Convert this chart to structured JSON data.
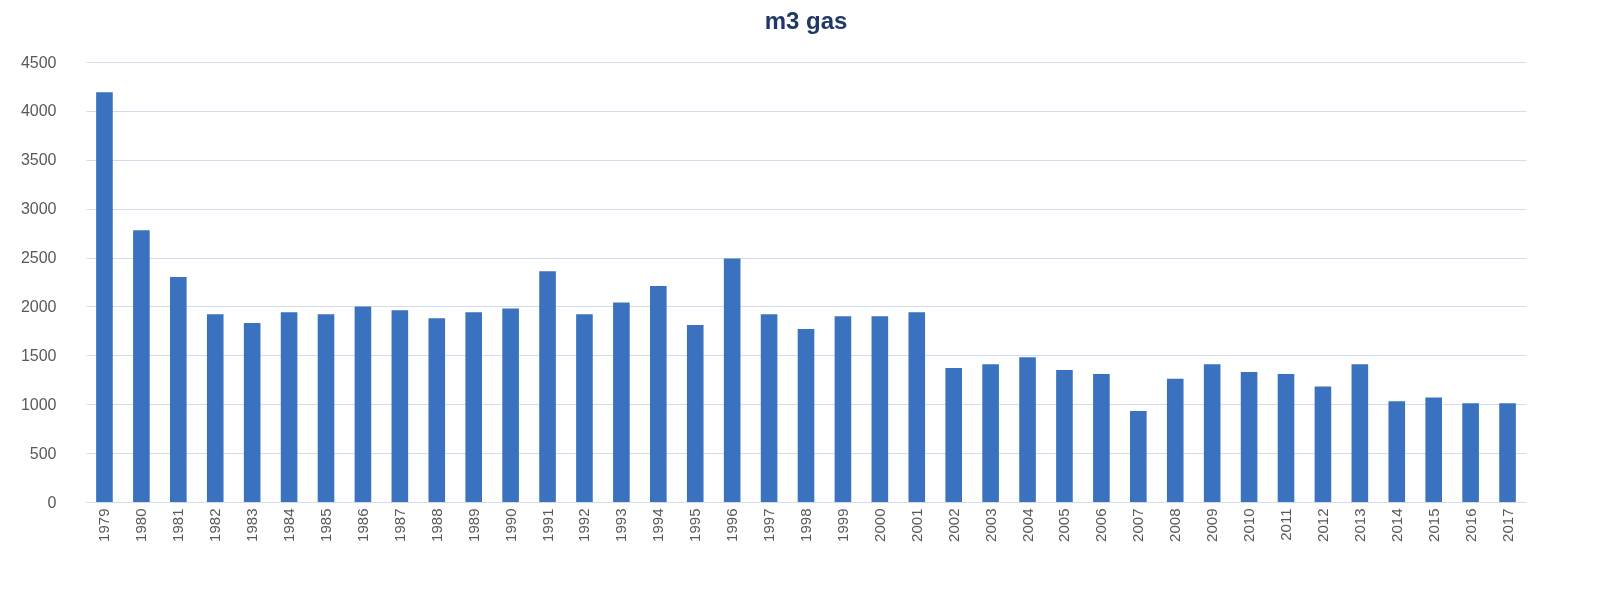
{
  "chart_data": {
    "type": "bar",
    "title": "m3 gas",
    "categories": [
      "1979",
      "1980",
      "1981",
      "1982",
      "1983",
      "1984",
      "1985",
      "1986",
      "1987",
      "1988",
      "1989",
      "1990",
      "1991",
      "1992",
      "1993",
      "1994",
      "1995",
      "1996",
      "1997",
      "1998",
      "1999",
      "2000",
      "2001",
      "2002",
      "2003",
      "2004",
      "2005",
      "2006",
      "2007",
      "2008",
      "2009",
      "2010",
      "2011",
      "2012",
      "2013",
      "2014",
      "2015",
      "2016",
      "2017"
    ],
    "values": [
      4190,
      2780,
      2300,
      1920,
      1830,
      1940,
      1920,
      2000,
      1960,
      1880,
      1940,
      1980,
      2360,
      1920,
      2040,
      2210,
      1810,
      2490,
      1920,
      1770,
      1900,
      1900,
      1940,
      1370,
      1410,
      1480,
      1350,
      1310,
      930,
      1260,
      1410,
      1330,
      1310,
      1180,
      1410,
      1030,
      1070,
      1010,
      1010
    ],
    "color": "#3a72bf",
    "ylim": [
      0,
      4500
    ],
    "yticks": [
      0,
      500,
      1000,
      1500,
      2000,
      2500,
      3000,
      3500,
      4000,
      4500
    ],
    "grid": "y"
  }
}
